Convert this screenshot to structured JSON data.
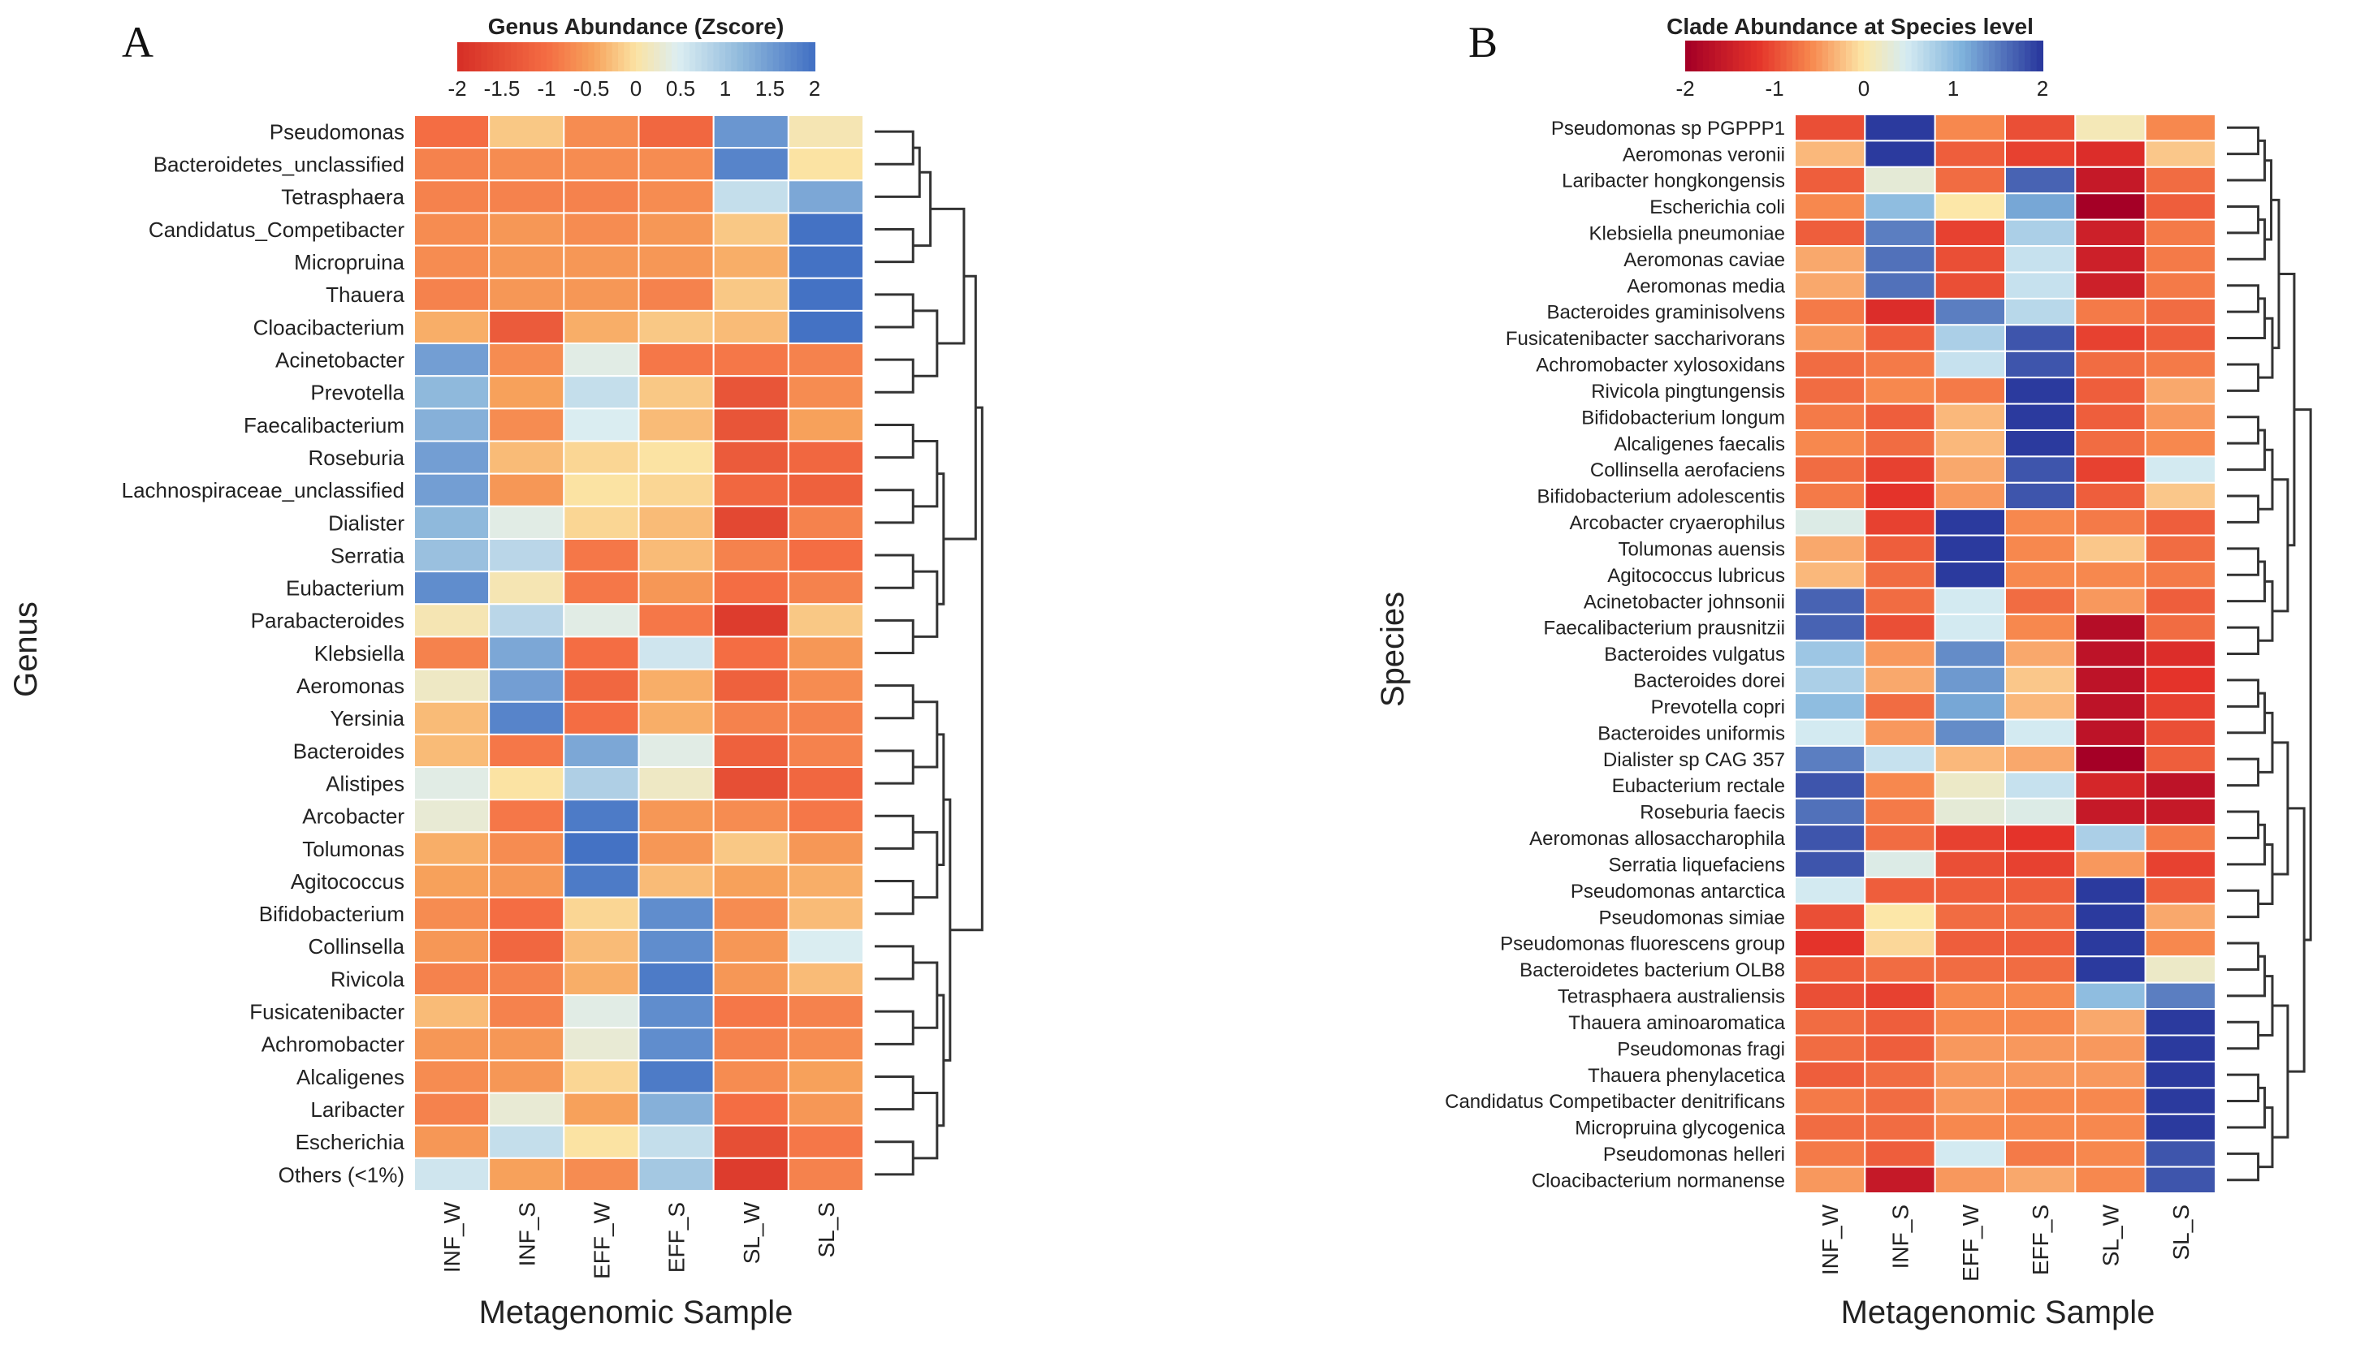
{
  "panels": [
    {
      "letter": "A",
      "legend_title": "Genus Abundance (Zscore)",
      "legend_ticks": [
        "-2",
        "-1.5",
        "-1",
        "-0.5",
        "0",
        "0.5",
        "1",
        "1.5",
        "2"
      ],
      "legend_scale": [
        -2,
        2
      ],
      "palette": "rdylbu",
      "y_axis_label": "Genus",
      "x_axis_label": "Metagenomic Sample",
      "columns": [
        "INF_W",
        "INF_S",
        "EFF_W",
        "EFF_S",
        "SL_W",
        "SL_S"
      ],
      "rows": [
        "Pseudomonas",
        "Bacteroidetes_unclassified",
        "Tetrasphaera",
        "Candidatus_Competibacter",
        "Micropruina",
        "Thauera",
        "Cloacibacterium",
        "Acinetobacter",
        "Prevotella",
        "Faecalibacterium",
        "Roseburia",
        "Lachnospiraceae_unclassified",
        "Dialister",
        "Serratia",
        "Eubacterium",
        "Parabacteroides",
        "Klebsiella",
        "Aeromonas",
        "Yersinia",
        "Bacteroides",
        "Alistipes",
        "Arcobacter",
        "Tolumonas",
        "Agitococcus",
        "Bifidobacterium",
        "Collinsella",
        "Rivicola",
        "Fusicatenibacter",
        "Achromobacter",
        "Alcaligenes",
        "Laribacter",
        "Escherichia",
        "Others (<1%)"
      ]
    },
    {
      "letter": "B",
      "legend_title": "Clade Abundance at Species level",
      "legend_ticks": [
        "-2",
        "-1",
        "0",
        "1",
        "2"
      ],
      "legend_scale": [
        -2,
        2
      ],
      "palette": "rdylbu_dark",
      "y_axis_label": "Species",
      "x_axis_label": "Metagenomic Sample",
      "columns": [
        "INF_W",
        "INF_S",
        "EFF_W",
        "EFF_S",
        "SL_W",
        "SL_S"
      ],
      "rows": [
        "Pseudomonas sp PGPPP1",
        "Aeromonas veronii",
        "Laribacter hongkongensis",
        "Escherichia coli",
        "Klebsiella pneumoniae",
        "Aeromonas caviae",
        "Aeromonas media",
        "Bacteroides graminisolvens",
        "Fusicatenibacter saccharivorans",
        "Achromobacter xylosoxidans",
        "Rivicola pingtungensis",
        "Bifidobacterium longum",
        "Alcaligenes faecalis",
        "Collinsella aerofaciens",
        "Bifidobacterium adolescentis",
        "Arcobacter cryaerophilus",
        "Tolumonas auensis",
        "Agitococcus lubricus",
        "Acinetobacter johnsonii",
        "Faecalibacterium prausnitzii",
        "Bacteroides vulgatus",
        "Bacteroides dorei",
        "Prevotella copri",
        "Bacteroides uniformis",
        "Dialister sp CAG 357",
        "Eubacterium rectale",
        "Roseburia faecis",
        "Aeromonas allosaccharophila",
        "Serratia liquefaciens",
        "Pseudomonas antarctica",
        "Pseudomonas simiae",
        "Pseudomonas fluorescens group",
        "Bacteroidetes bacterium OLB8",
        "Tetrasphaera australiensis",
        "Thauera aminoaromatica",
        "Pseudomonas fragi",
        "Thauera phenylacetica",
        "Candidatus Competibacter denitrificans",
        "Micropruina glycogenica",
        "Pseudomonas helleri",
        "Cloacibacterium normanense"
      ]
    }
  ],
  "chart_data": [
    {
      "type": "heatmap",
      "title": "Genus Abundance (Zscore)",
      "xlabel": "Metagenomic Sample",
      "ylabel": "Genus",
      "zlim": [
        -2,
        2
      ],
      "x": [
        "INF_W",
        "INF_S",
        "EFF_W",
        "EFF_S",
        "SL_W",
        "SL_S"
      ],
      "y": [
        "Pseudomonas",
        "Bacteroidetes_unclassified",
        "Tetrasphaera",
        "Candidatus_Competibacter",
        "Micropruina",
        "Thauera",
        "Cloacibacterium",
        "Acinetobacter",
        "Prevotella",
        "Faecalibacterium",
        "Roseburia",
        "Lachnospiraceae_unclassified",
        "Dialister",
        "Serratia",
        "Eubacterium",
        "Parabacteroides",
        "Klebsiella",
        "Aeromonas",
        "Yersinia",
        "Bacteroides",
        "Alistipes",
        "Arcobacter",
        "Tolumonas",
        "Agitococcus",
        "Bifidobacterium",
        "Collinsella",
        "Rivicola",
        "Fusicatenibacter",
        "Achromobacter",
        "Alcaligenes",
        "Laribacter",
        "Escherichia",
        "Others (<1%)"
      ],
      "values": [
        [
          -1.0,
          -0.2,
          -0.7,
          -1.1,
          1.6,
          0.1
        ],
        [
          -0.8,
          -0.7,
          -0.7,
          -0.7,
          1.8,
          0.0
        ],
        [
          -0.8,
          -0.8,
          -0.8,
          -0.7,
          0.7,
          1.4
        ],
        [
          -0.7,
          -0.6,
          -0.7,
          -0.6,
          -0.2,
          2.0
        ],
        [
          -0.7,
          -0.6,
          -0.6,
          -0.6,
          -0.4,
          2.0
        ],
        [
          -0.8,
          -0.6,
          -0.6,
          -0.8,
          -0.2,
          2.0
        ],
        [
          -0.4,
          -1.3,
          -0.4,
          -0.2,
          -0.3,
          2.0
        ],
        [
          1.5,
          -0.7,
          0.4,
          -0.9,
          -0.9,
          -0.8
        ],
        [
          1.2,
          -0.5,
          0.7,
          -0.2,
          -1.4,
          -0.7
        ],
        [
          1.3,
          -0.7,
          0.5,
          -0.3,
          -1.4,
          -0.5
        ],
        [
          1.5,
          -0.3,
          -0.1,
          0.0,
          -1.3,
          -1.1
        ],
        [
          1.5,
          -0.6,
          0.0,
          -0.1,
          -1.1,
          -1.2
        ],
        [
          1.2,
          0.4,
          -0.1,
          -0.3,
          -1.6,
          -0.8
        ],
        [
          1.1,
          0.8,
          -0.9,
          -0.3,
          -0.8,
          -1.0
        ],
        [
          1.7,
          0.1,
          -0.9,
          -0.6,
          -1.0,
          -0.8
        ],
        [
          0.1,
          0.8,
          0.4,
          -0.9,
          -1.8,
          -0.2
        ],
        [
          -0.8,
          1.4,
          -1.0,
          0.6,
          -1.0,
          -0.6
        ],
        [
          0.2,
          1.5,
          -1.1,
          -0.4,
          -1.2,
          -0.7
        ],
        [
          -0.3,
          1.8,
          -1.0,
          -0.4,
          -0.8,
          -0.8
        ],
        [
          -0.3,
          -0.9,
          1.4,
          0.4,
          -1.2,
          -0.8
        ],
        [
          0.4,
          0.0,
          0.9,
          0.2,
          -1.5,
          -1.1
        ],
        [
          0.3,
          -0.9,
          1.9,
          -0.6,
          -0.7,
          -0.9
        ],
        [
          -0.4,
          -0.7,
          2.0,
          -0.6,
          -0.2,
          -0.6
        ],
        [
          -0.5,
          -0.6,
          1.9,
          -0.3,
          -0.5,
          -0.4
        ],
        [
          -0.7,
          -1.0,
          -0.1,
          1.7,
          -0.7,
          -0.3
        ],
        [
          -0.6,
          -1.1,
          -0.3,
          1.7,
          -0.6,
          0.5
        ],
        [
          -0.8,
          -0.8,
          -0.4,
          1.9,
          -0.6,
          -0.3
        ],
        [
          -0.3,
          -0.8,
          0.4,
          1.7,
          -0.9,
          -0.8
        ],
        [
          -0.6,
          -0.6,
          0.3,
          1.7,
          -0.8,
          -0.7
        ],
        [
          -0.7,
          -0.6,
          -0.1,
          1.9,
          -0.7,
          -0.5
        ],
        [
          -0.8,
          0.3,
          -0.5,
          1.3,
          -1.0,
          -0.6
        ],
        [
          -0.6,
          0.7,
          0.0,
          0.7,
          -1.5,
          -0.9
        ],
        [
          0.6,
          -0.5,
          -0.7,
          1.0,
          -1.8,
          -0.8
        ]
      ]
    },
    {
      "type": "heatmap",
      "title": "Clade Abundance at Species level",
      "xlabel": "Metagenomic Sample",
      "ylabel": "Species",
      "zlim": [
        -2,
        2
      ],
      "x": [
        "INF_W",
        "INF_S",
        "EFF_W",
        "EFF_S",
        "SL_W",
        "SL_S"
      ],
      "y": [
        "Pseudomonas sp PGPPP1",
        "Aeromonas veronii",
        "Laribacter hongkongensis",
        "Escherichia coli",
        "Klebsiella pneumoniae",
        "Aeromonas caviae",
        "Aeromonas media",
        "Bacteroides graminisolvens",
        "Fusicatenibacter saccharivorans",
        "Achromobacter xylosoxidans",
        "Rivicola pingtungensis",
        "Bifidobacterium longum",
        "Alcaligenes faecalis",
        "Collinsella aerofaciens",
        "Bifidobacterium adolescentis",
        "Arcobacter cryaerophilus",
        "Tolumonas auensis",
        "Agitococcus lubricus",
        "Acinetobacter johnsonii",
        "Faecalibacterium prausnitzii",
        "Bacteroides vulgatus",
        "Bacteroides dorei",
        "Prevotella copri",
        "Bacteroides uniformis",
        "Dialister sp CAG 357",
        "Eubacterium rectale",
        "Roseburia faecis",
        "Aeromonas allosaccharophila",
        "Serratia liquefaciens",
        "Pseudomonas antarctica",
        "Pseudomonas simiae",
        "Pseudomonas fluorescens group",
        "Bacteroidetes bacterium OLB8",
        "Tetrasphaera australiensis",
        "Thauera aminoaromatica",
        "Pseudomonas fragi",
        "Thauera phenylacetica",
        "Candidatus Competibacter denitrificans",
        "Micropruina glycogenica",
        "Pseudomonas helleri",
        "Cloacibacterium normanense"
      ],
      "values": [
        [
          -1.0,
          2.0,
          -0.6,
          -1.0,
          0.1,
          -0.6
        ],
        [
          -0.3,
          2.0,
          -0.9,
          -1.1,
          -1.3,
          -0.2
        ],
        [
          -0.9,
          0.3,
          -0.8,
          1.7,
          -1.6,
          -0.8
        ],
        [
          -0.6,
          1.0,
          0.0,
          1.2,
          -2.0,
          -0.9
        ],
        [
          -0.9,
          1.5,
          -1.1,
          0.8,
          -1.5,
          -0.7
        ],
        [
          -0.4,
          1.6,
          -1.0,
          0.6,
          -1.5,
          -0.7
        ],
        [
          -0.4,
          1.6,
          -1.0,
          0.6,
          -1.5,
          -0.7
        ],
        [
          -0.7,
          -1.3,
          1.5,
          0.7,
          -0.7,
          -0.8
        ],
        [
          -0.5,
          -0.9,
          0.8,
          1.8,
          -1.1,
          -0.9
        ],
        [
          -0.8,
          -0.7,
          0.6,
          1.8,
          -0.8,
          -0.7
        ],
        [
          -0.8,
          -0.6,
          -0.7,
          2.0,
          -0.9,
          -0.4
        ],
        [
          -0.7,
          -0.9,
          -0.3,
          2.0,
          -0.9,
          -0.5
        ],
        [
          -0.6,
          -0.8,
          -0.3,
          2.0,
          -0.8,
          -0.6
        ],
        [
          -0.8,
          -1.1,
          -0.4,
          1.8,
          -1.1,
          0.5
        ],
        [
          -0.7,
          -1.2,
          -0.5,
          1.8,
          -0.9,
          -0.2
        ],
        [
          0.4,
          -1.1,
          2.0,
          -0.6,
          -0.7,
          -0.9
        ],
        [
          -0.4,
          -0.9,
          2.0,
          -0.6,
          -0.2,
          -0.8
        ],
        [
          -0.3,
          -0.8,
          2.0,
          -0.6,
          -0.6,
          -0.7
        ],
        [
          1.7,
          -0.8,
          0.5,
          -0.8,
          -0.5,
          -0.9
        ],
        [
          1.7,
          -1.0,
          0.5,
          -0.6,
          -1.8,
          -0.8
        ],
        [
          0.9,
          -0.5,
          1.4,
          -0.4,
          -1.7,
          -1.3
        ],
        [
          0.8,
          -0.4,
          1.3,
          -0.2,
          -1.7,
          -1.2
        ],
        [
          1.0,
          -0.8,
          1.2,
          -0.3,
          -1.7,
          -1.1
        ],
        [
          0.5,
          -0.5,
          1.4,
          0.5,
          -1.7,
          -1.0
        ],
        [
          1.5,
          0.6,
          -0.3,
          -0.4,
          -2.0,
          -0.9
        ],
        [
          1.8,
          -0.6,
          0.2,
          0.6,
          -1.4,
          -1.7
        ],
        [
          1.6,
          -0.7,
          0.3,
          0.4,
          -1.6,
          -1.6
        ],
        [
          1.8,
          -0.8,
          -1.1,
          -1.2,
          0.8,
          -0.7
        ],
        [
          1.8,
          0.4,
          -1.0,
          -1.1,
          -0.5,
          -1.1
        ],
        [
          0.5,
          -0.9,
          -0.9,
          -0.9,
          2.0,
          -0.9
        ],
        [
          -1.0,
          0.0,
          -0.8,
          -0.8,
          2.0,
          -0.4
        ],
        [
          -1.2,
          -0.1,
          -0.9,
          -0.9,
          2.0,
          -0.6
        ],
        [
          -0.9,
          -0.8,
          -0.8,
          -0.8,
          2.0,
          0.2
        ],
        [
          -1.0,
          -1.1,
          -0.6,
          -0.6,
          1.0,
          1.5
        ],
        [
          -0.8,
          -0.9,
          -0.6,
          -0.6,
          -0.4,
          2.0
        ],
        [
          -0.8,
          -0.9,
          -0.5,
          -0.5,
          -0.5,
          2.0
        ],
        [
          -0.9,
          -0.8,
          -0.5,
          -0.5,
          -0.5,
          2.0
        ],
        [
          -0.7,
          -0.8,
          -0.5,
          -0.6,
          -0.6,
          2.0
        ],
        [
          -0.8,
          -0.8,
          -0.6,
          -0.6,
          -0.6,
          2.0
        ],
        [
          -0.7,
          -0.9,
          0.5,
          -0.7,
          -0.6,
          1.8
        ],
        [
          -0.5,
          -1.6,
          -0.5,
          -0.4,
          -0.6,
          1.8
        ]
      ]
    }
  ]
}
